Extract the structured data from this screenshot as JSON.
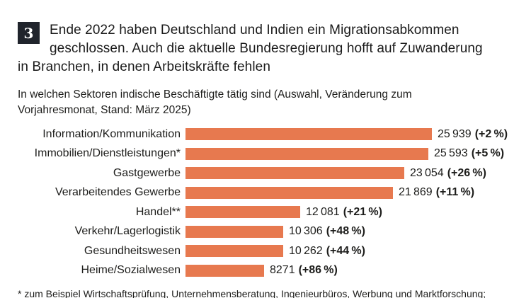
{
  "header": {
    "badge": "3",
    "title_lines": [
      "Ende 2022 haben Deutschland und Indien ein Migrationsabkommen",
      "geschlossen. Auch die aktuelle Bundesregierung hofft auf Zuwanderung",
      "in Branchen, in denen Arbeitskräfte fehlen"
    ]
  },
  "subtitle_lines": [
    "In welchen Sektoren indische Beschäftigte tätig sind (Auswahl, Veränderung zum",
    "Vorjahresmonat, Stand: März 2025)"
  ],
  "chart_data": {
    "type": "bar",
    "orientation": "horizontal",
    "title": "In welchen Sektoren indische Beschäftigte tätig sind (Auswahl, Veränderung zum Vorjahresmonat, Stand: März 2025)",
    "categories": [
      "Information/Kommunikation",
      "Immobilien/Dienstleistungen*",
      "Gastgewerbe",
      "Verarbeitendes Gewerbe",
      "Handel**",
      "Verkehr/Lagerlogistik",
      "Gesundheitswesen",
      "Heime/Sozialwesen"
    ],
    "values": [
      25939,
      25593,
      23054,
      21869,
      12081,
      10306,
      10262,
      8271
    ],
    "changes_percent": [
      2,
      5,
      26,
      11,
      21,
      48,
      44,
      86
    ],
    "value_labels": [
      "25 939",
      "25 593",
      "23 054",
      "21 869",
      "12 081",
      "10 306",
      "10 262",
      "8271"
    ],
    "change_labels": [
      "(+2 %)",
      "(+5 %)",
      "(+26 %)",
      "(+11 %)",
      "(+21 %)",
      "(+48 %)",
      "(+44 %)",
      "(+86 %)"
    ],
    "xlim": [
      0,
      25939
    ],
    "bar_color": "#e7794f",
    "grid": false,
    "legend": false
  },
  "footnote": "* zum Beispiel Wirtschaftsprüfung, Unternehmensberatung, Ingenieurbüros, Werbung und Marktforschung;"
}
